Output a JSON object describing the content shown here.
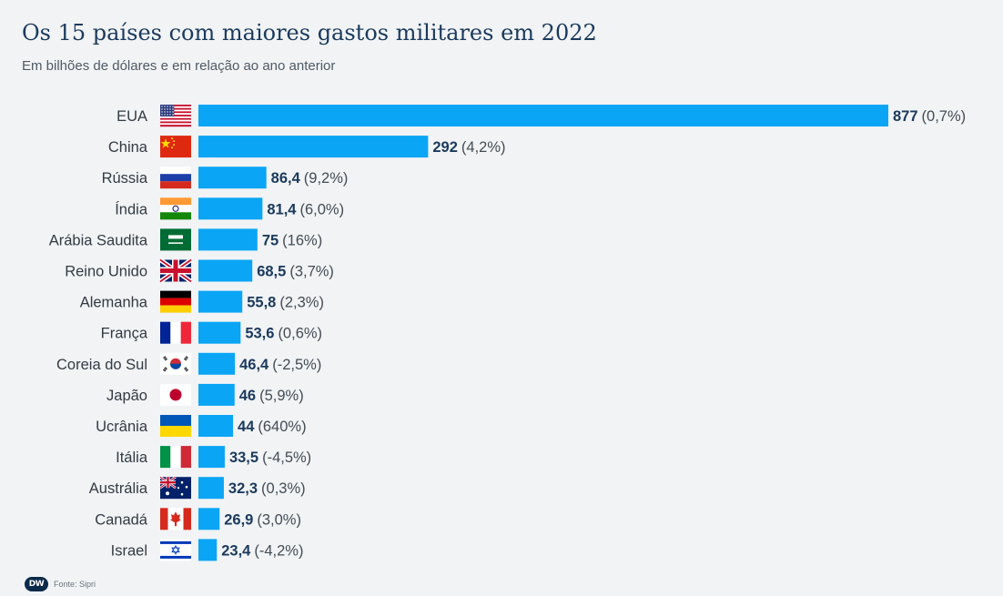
{
  "title": "Os 15 países com maiores gastos militares em 2022",
  "subtitle": "Em bilhões de dólares e em relação ao ano anterior",
  "source": "Fonte: Sipri",
  "logo_text": "DW",
  "colors": {
    "bar": "#0aa5f5",
    "value_text": "#1b3a5c",
    "change_text": "#444c55",
    "label_text": "#333b44",
    "background": "#f1f3f5"
  },
  "chart_data": {
    "type": "bar",
    "orientation": "horizontal",
    "categories": [
      "EUA",
      "China",
      "Rússia",
      "Índia",
      "Arábia Saudita",
      "Reino Unido",
      "Alemanha",
      "França",
      "Coreia do Sul",
      "Japão",
      "Ucrânia",
      "Itália",
      "Austrália",
      "Canadá",
      "Israel"
    ],
    "values": [
      877,
      292,
      86.4,
      81.4,
      75,
      68.5,
      55.8,
      53.6,
      46.4,
      46,
      44,
      33.5,
      32.3,
      26.9,
      23.4
    ],
    "value_labels": [
      "877",
      "292",
      "86,4",
      "81,4",
      "75",
      "68,5",
      "55,8",
      "53,6",
      "46,4",
      "46",
      "44",
      "33,5",
      "32,3",
      "26,9",
      "23,4"
    ],
    "change_labels": [
      "(0,7%)",
      "(4,2%)",
      "(9,2%)",
      "(6,0%)",
      "(16%)",
      "(3,7%)",
      "(2,3%)",
      "(0,6%)",
      "(-2,5%)",
      "(5,9%)",
      "(640%)",
      "(-4,5%)",
      "(0,3%)",
      "(3,0%)",
      "(-4,2%)"
    ],
    "flags": [
      "usa-flag",
      "china-flag",
      "russia-flag",
      "india-flag",
      "saudi-arabia-flag",
      "uk-flag",
      "germany-flag",
      "france-flag",
      "south-korea-flag",
      "japan-flag",
      "ukraine-flag",
      "italy-flag",
      "australia-flag",
      "canada-flag",
      "israel-flag"
    ],
    "xlim": [
      0,
      877
    ],
    "grid": false
  }
}
